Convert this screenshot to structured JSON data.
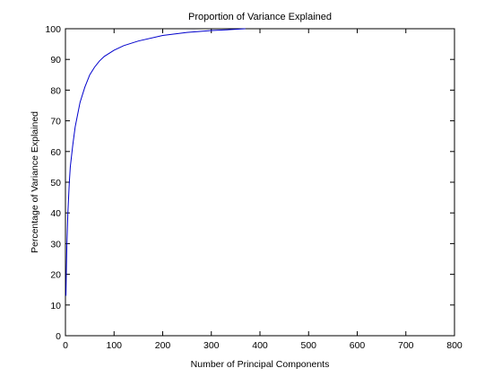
{
  "chart_data": {
    "type": "line",
    "title": "Proportion of Variance Explained",
    "xlabel": "Number of Principal Components",
    "ylabel": "Percentage of Variance Explained",
    "xlim": [
      0,
      800
    ],
    "ylim": [
      0,
      100
    ],
    "xticks": [
      0,
      100,
      200,
      300,
      400,
      500,
      600,
      700,
      800
    ],
    "yticks": [
      0,
      10,
      20,
      30,
      40,
      50,
      60,
      70,
      80,
      90,
      100
    ],
    "grid": false,
    "legend": "none",
    "line_color": "#0000cc",
    "series": [
      {
        "x": [
          1,
          2,
          3,
          5,
          8,
          10,
          15,
          20,
          25,
          30,
          40,
          50,
          60,
          70,
          80,
          100,
          120,
          150,
          200,
          250,
          300,
          350,
          370
        ],
        "y": [
          13,
          22,
          30,
          40,
          50,
          55,
          62,
          68,
          72,
          76,
          81,
          85,
          87.5,
          89.5,
          91,
          93,
          94.5,
          96,
          97.8,
          98.8,
          99.4,
          99.8,
          100
        ]
      }
    ]
  }
}
